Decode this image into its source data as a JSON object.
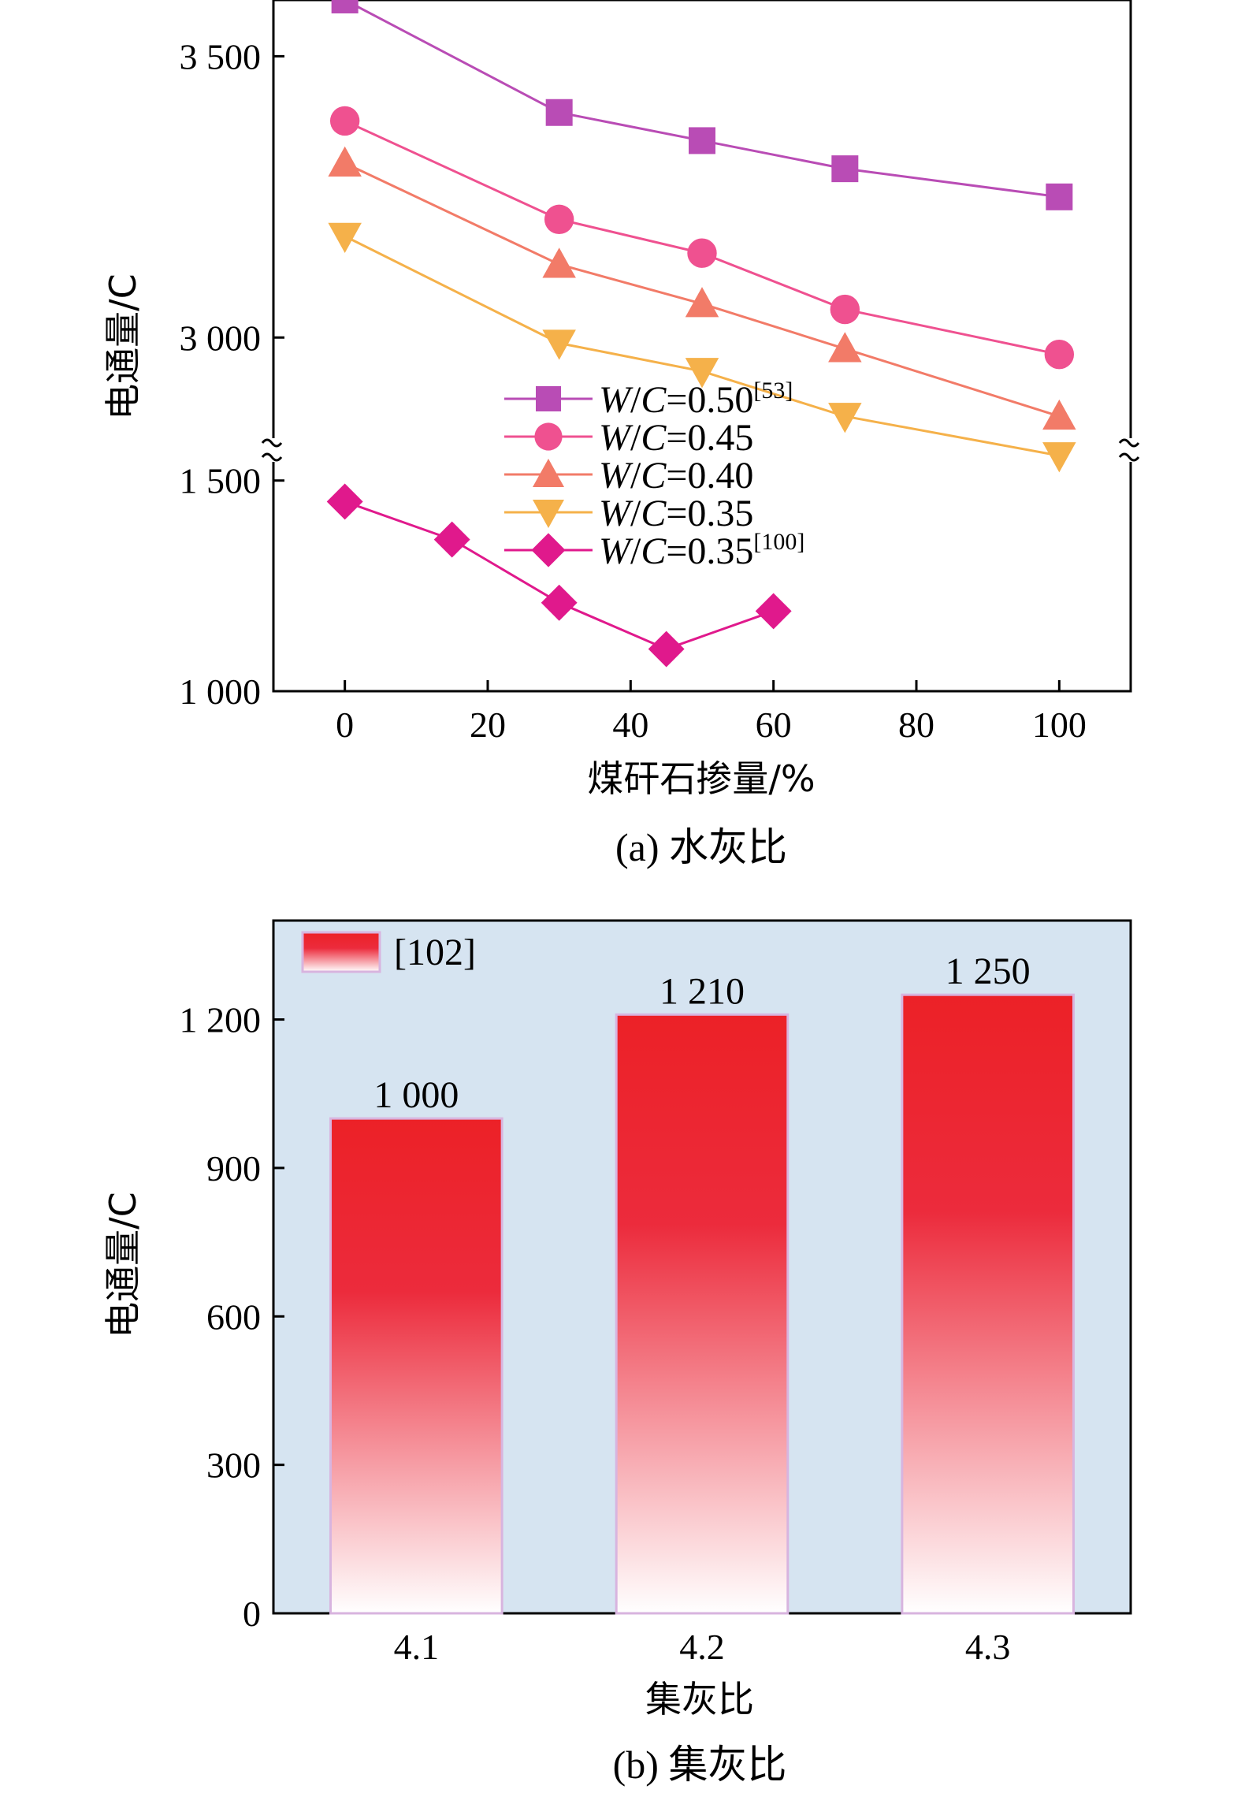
{
  "chart_data": [
    {
      "type": "line",
      "xlabel": "煤矸石掺量/%",
      "ylabel": "电通量/C",
      "caption": "(a) 水灰比",
      "xlim": [
        -10,
        110
      ],
      "xticks": [
        0,
        20,
        40,
        60,
        80,
        100
      ],
      "y_axis_break": true,
      "y_segments": [
        {
          "range": [
            1000,
            1550
          ],
          "ticks": [
            1000,
            1500
          ],
          "tick_labels": [
            "1 000",
            "1 500"
          ]
        },
        {
          "range": [
            2800,
            3600
          ],
          "ticks": [
            3000,
            3500
          ],
          "tick_labels": [
            "3 000",
            "3 500"
          ]
        }
      ],
      "legend_position": "center",
      "series": [
        {
          "name_prefix": "W",
          "name_mid": "/",
          "name_c": "C",
          "name_value": "=0.50",
          "name_ref": "[53]",
          "marker": "square",
          "color": "#b94cb5",
          "x": [
            0,
            30,
            50,
            70,
            100
          ],
          "y": [
            3600,
            3400,
            3350,
            3300,
            3250
          ]
        },
        {
          "name_prefix": "W",
          "name_mid": "/",
          "name_c": "C",
          "name_value": "=0.45",
          "name_ref": "",
          "marker": "circle",
          "color": "#ef5190",
          "x": [
            0,
            30,
            50,
            70,
            100
          ],
          "y": [
            3385,
            3210,
            3150,
            3050,
            2970
          ]
        },
        {
          "name_prefix": "W",
          "name_mid": "/",
          "name_c": "C",
          "name_value": "=0.40",
          "name_ref": "",
          "marker": "triangle-up",
          "color": "#f27b68",
          "x": [
            0,
            30,
            50,
            70,
            100
          ],
          "y": [
            3310,
            3130,
            3060,
            2980,
            2860
          ]
        },
        {
          "name_prefix": "W",
          "name_mid": "/",
          "name_c": "C",
          "name_value": "=0.35",
          "name_ref": "",
          "marker": "triangle-down",
          "color": "#f5b14a",
          "x": [
            0,
            30,
            50,
            70,
            100
          ],
          "y": [
            3180,
            2990,
            2940,
            2860,
            2790
          ]
        },
        {
          "name_prefix": "W",
          "name_mid": "/",
          "name_c": "C",
          "name_value": "=0.35",
          "name_ref": "[100]",
          "marker": "diamond",
          "color": "#e0198c",
          "x": [
            0,
            15,
            30,
            45,
            60
          ],
          "y": [
            1450,
            1360,
            1210,
            1100,
            1190
          ]
        }
      ]
    },
    {
      "type": "bar",
      "xlabel": "集灰比",
      "ylabel": "电通量/C",
      "caption": "(b) 集灰比",
      "categories": [
        "4.1",
        "4.2",
        "4.3"
      ],
      "values": [
        1000,
        1210,
        1250
      ],
      "value_labels": [
        "1 000",
        "1 210",
        "1 250"
      ],
      "ylim": [
        0,
        1400
      ],
      "yticks": [
        0,
        300,
        600,
        900,
        1200
      ],
      "ytick_labels": [
        "0",
        "300",
        "600",
        "900",
        "1 200"
      ],
      "legend": "[102]",
      "legend_position": "top-left",
      "colors": {
        "background": "#d6e4f1",
        "bar_top": "#ec2127",
        "bar_bottom": "#ffffff",
        "bar_edge": "#d8b4df"
      }
    }
  ]
}
